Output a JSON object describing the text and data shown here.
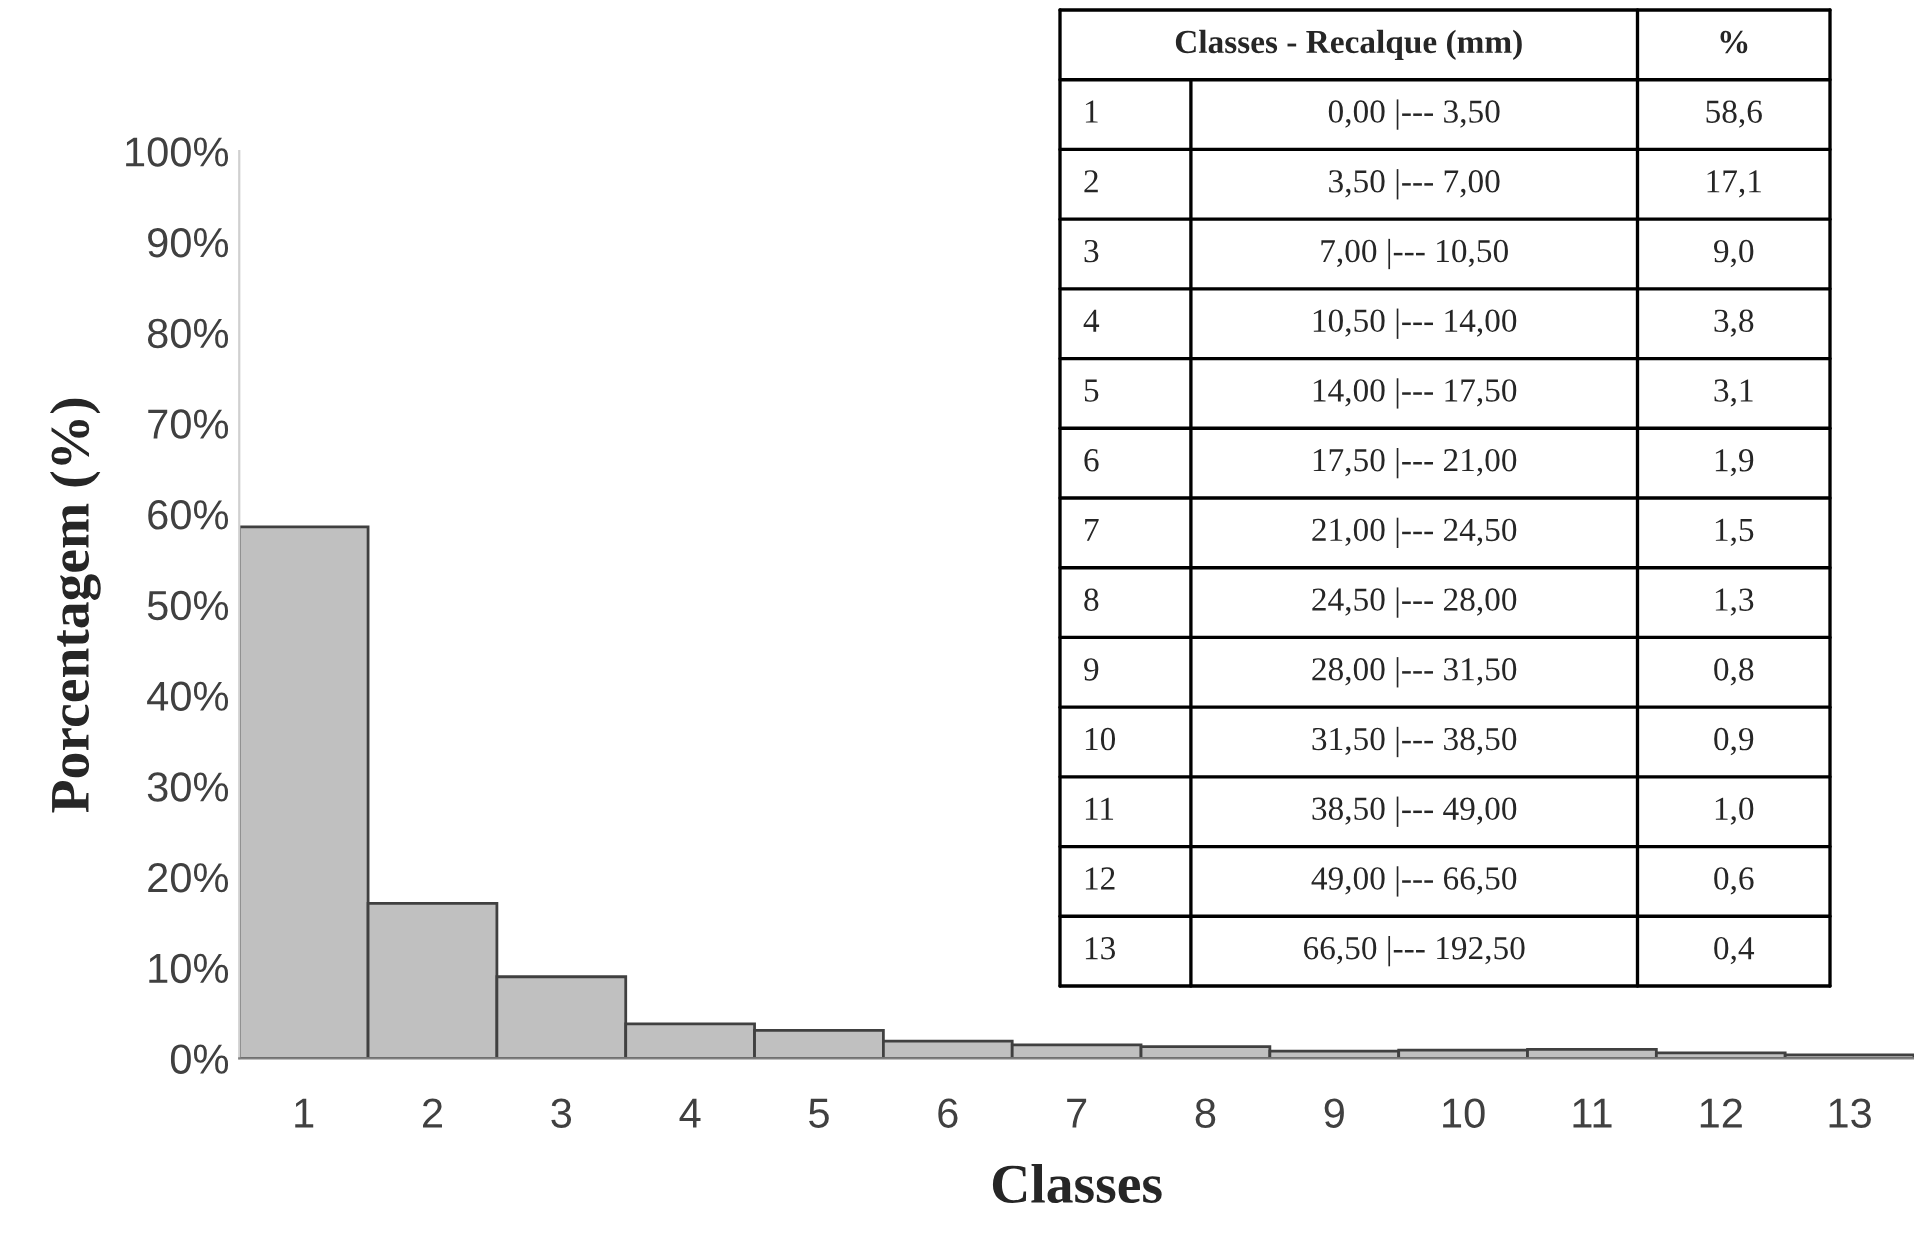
{
  "chart_data": {
    "type": "bar",
    "xlabel": "Classes",
    "ylabel": "Porcentagem (%)",
    "categories": [
      "1",
      "2",
      "3",
      "4",
      "5",
      "6",
      "7",
      "8",
      "9",
      "10",
      "11",
      "12",
      "13"
    ],
    "values": [
      58.6,
      17.1,
      9.0,
      3.8,
      3.1,
      1.9,
      1.5,
      1.3,
      0.8,
      0.9,
      1.0,
      0.6,
      0.4
    ],
    "color": "#c0c0c0",
    "ylim": [
      0,
      100
    ],
    "yticks": [
      {
        "value": 0,
        "label": "0%"
      },
      {
        "value": 10,
        "label": "10%"
      },
      {
        "value": 20,
        "label": "20%"
      },
      {
        "value": 30,
        "label": "30%"
      },
      {
        "value": 40,
        "label": "40%"
      },
      {
        "value": 50,
        "label": "50%"
      },
      {
        "value": 60,
        "label": "60%"
      },
      {
        "value": 70,
        "label": "70%"
      },
      {
        "value": 80,
        "label": "80%"
      },
      {
        "value": 90,
        "label": "90%"
      },
      {
        "value": 100,
        "label": "100%"
      }
    ],
    "annotations": [
      "Classes - Recalque (mm)",
      "%",
      "0,00 |--- 3,50",
      "58,6",
      "3,50 |--- 7,00",
      "17,1",
      "7,00 |--- 10,50",
      "9,0",
      "10,50 |--- 14,00",
      "3,8",
      "14,00 |--- 17,50",
      "3,1",
      "17,50 |--- 21,00",
      "1,9",
      "21,00 |--- 24,50",
      "1,5",
      "24,50 |--- 28,00",
      "1,3",
      "28,00 |--- 31,50",
      "0,8",
      "31,50 |--- 38,50",
      "0,9",
      "38,50 |--- 49,00",
      "1,0",
      "49,00 |--- 66,50",
      "0,6",
      "66,50 |--- 192,50",
      "0,4"
    ]
  }
}
